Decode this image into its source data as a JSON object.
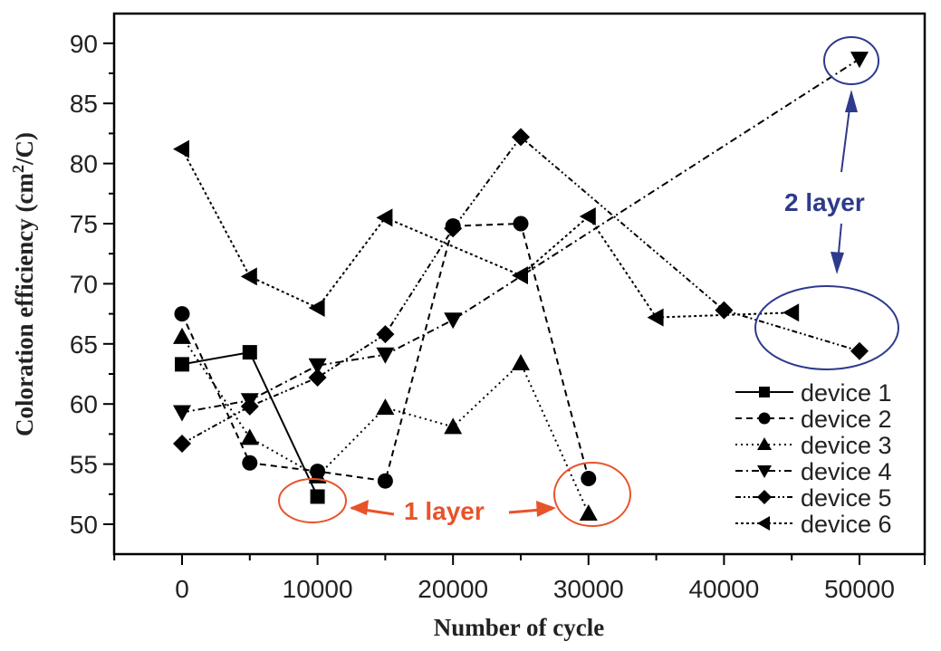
{
  "chart_data": {
    "type": "line",
    "title": "",
    "xlabel": "Number of cycle",
    "ylabel": "Coloration efficiency (cm2/C)",
    "ylabel_parts": {
      "main": "Coloration efficiency (cm",
      "sup": "2",
      "tail": "/C)"
    },
    "xlim": [
      -6000,
      65000
    ],
    "ylim": [
      47.5,
      92.5
    ],
    "xticks": [
      0,
      10000,
      20000,
      30000,
      40000,
      50000
    ],
    "xtick_labels": [
      "0",
      "10000",
      "20000",
      "30000",
      "40000",
      "50000"
    ],
    "yticks": [
      50,
      55,
      60,
      65,
      70,
      75,
      80,
      85,
      90
    ],
    "ytick_labels": [
      "50",
      "55",
      "60",
      "65",
      "70",
      "75",
      "80",
      "85",
      "90"
    ],
    "grid": false,
    "legend_position": "lower right",
    "series": [
      {
        "name": "device 1",
        "marker": "square",
        "line": "solid",
        "x": [
          0,
          5000,
          10000
        ],
        "y": [
          63.3,
          64.3,
          52.3
        ]
      },
      {
        "name": "device 2",
        "marker": "circle",
        "line": "dashed",
        "x": [
          0,
          5000,
          10000,
          15000,
          20000,
          25000,
          30000
        ],
        "y": [
          67.5,
          55.1,
          54.4,
          53.6,
          74.8,
          75.0,
          53.8
        ]
      },
      {
        "name": "device 3",
        "marker": "triangle-up",
        "line": "dotted",
        "x": [
          0,
          5000,
          10000,
          15000,
          20000,
          25000,
          30000
        ],
        "y": [
          65.6,
          57.2,
          54.0,
          59.7,
          58.1,
          63.4,
          50.9
        ]
      },
      {
        "name": "device 4",
        "marker": "triangle-down",
        "line": "dashdot",
        "x": [
          0,
          5000,
          10000,
          15000,
          20000,
          50000
        ],
        "y": [
          59.3,
          60.3,
          63.2,
          64.1,
          67.0,
          88.7
        ]
      },
      {
        "name": "device 5",
        "marker": "diamond",
        "line": "dashdotdot",
        "x": [
          0,
          5000,
          10000,
          15000,
          20000,
          25000,
          40000,
          50000
        ],
        "y": [
          56.7,
          59.8,
          62.2,
          65.8,
          74.6,
          82.2,
          67.8,
          64.4
        ]
      },
      {
        "name": "device 6",
        "marker": "triangle-left",
        "line": "shortdot",
        "x": [
          0,
          5000,
          10000,
          15000,
          25000,
          30000,
          35000,
          45000
        ],
        "y": [
          81.2,
          70.6,
          68.0,
          75.5,
          70.7,
          75.6,
          67.2,
          67.6
        ]
      }
    ],
    "annotations": [
      {
        "text": "1 layer",
        "color": "#e8532a",
        "targets": [
          [
            10000,
            52.3
          ],
          [
            30000,
            52.3
          ]
        ]
      },
      {
        "text": "2 layer",
        "color": "#2e3a8c",
        "targets": [
          [
            50000,
            88.7
          ],
          [
            48000,
            66.0
          ]
        ]
      }
    ]
  },
  "legend": {
    "items": [
      "device 1",
      "device 2",
      "device 3",
      "device 4",
      "device 5",
      "device 6"
    ]
  },
  "annotations": {
    "one_layer": "1 layer",
    "two_layer": "2 layer"
  },
  "colors": {
    "one_layer": "#e8532a",
    "two_layer": "#2e3a8c",
    "ink": "#000000"
  }
}
